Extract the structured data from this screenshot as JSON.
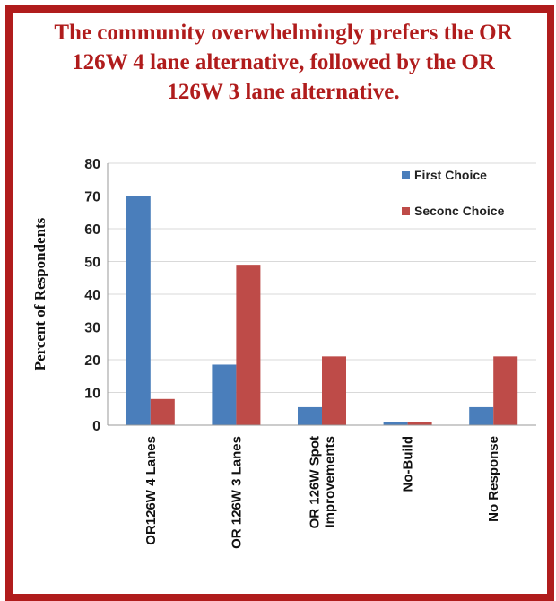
{
  "chart_data": {
    "type": "bar",
    "title": "The community overwhelmingly prefers the OR 126W 4 lane alternative, followed by the OR 126W 3 lane alternative.",
    "ylabel": "Percent of Respondents",
    "xlabel": "",
    "ylim": [
      0,
      80
    ],
    "yticks": [
      0,
      10,
      20,
      30,
      40,
      50,
      60,
      70,
      80
    ],
    "grid": true,
    "legend_position": "right",
    "categories": [
      "OR126W 4 Lanes",
      "OR 126W 3 Lanes",
      "OR 126W Spot Improvements",
      "No-Build",
      "No Response"
    ],
    "category_lines": [
      [
        "OR126W 4 Lanes"
      ],
      [
        "OR 126W 3 Lanes"
      ],
      [
        "OR 126W Spot",
        "Improvements"
      ],
      [
        "No-Build"
      ],
      [
        "No Response"
      ]
    ],
    "series": [
      {
        "name": "First Choice",
        "color": "#4a7ebb",
        "values": [
          70,
          18.5,
          5.5,
          1,
          5.5
        ]
      },
      {
        "name": "Seconc Choice",
        "color": "#be4b48",
        "values": [
          8,
          49,
          21,
          1,
          21
        ]
      }
    ]
  }
}
